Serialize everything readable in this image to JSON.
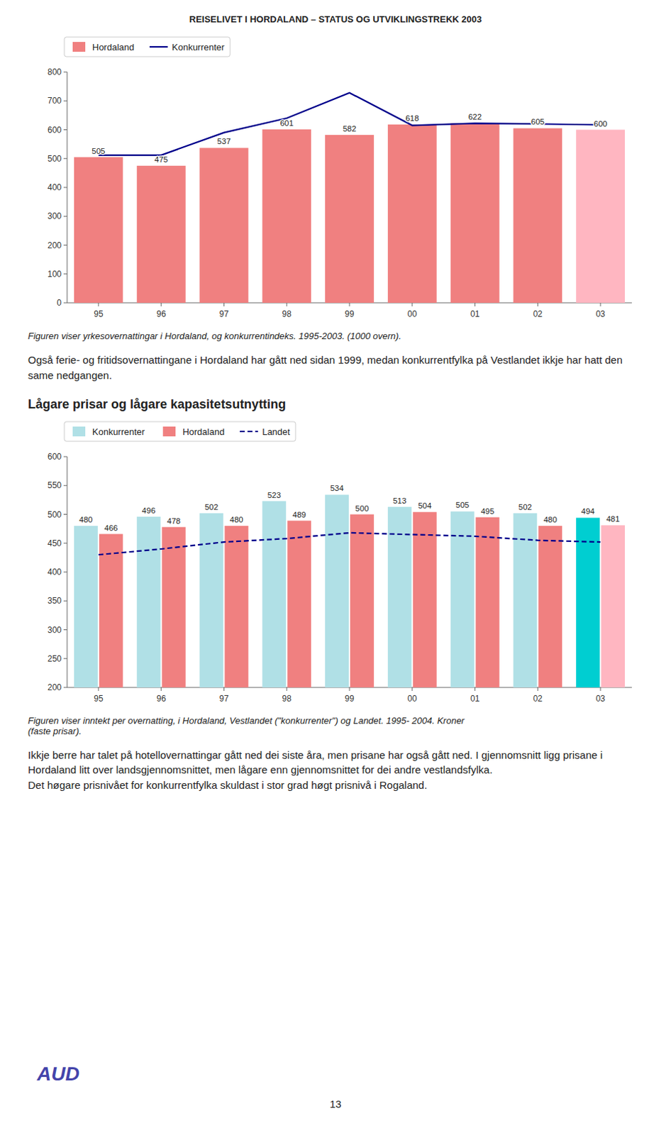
{
  "page_title": "REISELIVET I HORDALAND – STATUS OG UTVIKLINGSTREKK 2003",
  "chart_data": [
    {
      "type": "bar",
      "categories": [
        "95",
        "96",
        "97",
        "98",
        "99",
        "00",
        "01",
        "02",
        "03"
      ],
      "series": [
        {
          "name": "Hordaland",
          "type": "bar",
          "color": "#F08080",
          "colors": [
            "#F08080",
            "#F08080",
            "#F08080",
            "#F08080",
            "#F08080",
            "#F08080",
            "#F08080",
            "#F08080",
            "#FFB6C1"
          ],
          "values": [
            505,
            475,
            537,
            601,
            582,
            618,
            622,
            605,
            600
          ],
          "data_labels": true
        },
        {
          "name": "Konkurrenter",
          "type": "line",
          "color": "#00008B",
          "line_style": "solid",
          "values": [
            512,
            512,
            590,
            640,
            728,
            615,
            622,
            620,
            617
          ]
        }
      ],
      "ylim": [
        0,
        800
      ],
      "yticks": [
        0,
        100,
        200,
        300,
        400,
        500,
        600,
        700,
        800
      ],
      "grid": false,
      "legend": "upper left",
      "caption": "Figuren viser yrkesovernattingar i Hordaland, og konkurrentindeks. 1995-2003. (1000 overn)."
    },
    {
      "type": "bar",
      "categories": [
        "95",
        "96",
        "97",
        "98",
        "99",
        "00",
        "01",
        "02",
        "03"
      ],
      "series": [
        {
          "name": "Konkurrenter",
          "type": "bar",
          "color": "#B0E0E6",
          "colors": [
            "#B0E0E6",
            "#B0E0E6",
            "#B0E0E6",
            "#B0E0E6",
            "#B0E0E6",
            "#B0E0E6",
            "#B0E0E6",
            "#B0E0E6",
            "#00CED1"
          ],
          "values": [
            480,
            496,
            502,
            523,
            534,
            513,
            505,
            502,
            494
          ],
          "data_labels": true
        },
        {
          "name": "Hordaland",
          "type": "bar",
          "color": "#F08080",
          "colors": [
            "#F08080",
            "#F08080",
            "#F08080",
            "#F08080",
            "#F08080",
            "#F08080",
            "#F08080",
            "#F08080",
            "#FFB6C1"
          ],
          "values": [
            466,
            478,
            480,
            489,
            500,
            504,
            495,
            480,
            481
          ],
          "data_labels": true
        },
        {
          "name": "Landet",
          "type": "line",
          "color": "#00008B",
          "line_style": "dashed",
          "values": [
            430,
            440,
            452,
            458,
            468,
            465,
            462,
            455,
            452
          ]
        }
      ],
      "ylim": [
        200,
        600
      ],
      "yticks": [
        200,
        250,
        300,
        350,
        400,
        450,
        500,
        550,
        600
      ],
      "grid": false,
      "legend": "upper left",
      "caption": "Figuren viser inntekt per overnatting, i Hordaland, Vestlandet (\"konkurrenter\") og Landet. 1995- 2004. Kroner\n(faste prisar)."
    }
  ],
  "text_between": "Også ferie- og fritidsovernattingane i Hordaland har gått ned sidan 1999, medan konkurrentfylka på Vestlandet ikkje har hatt den same nedgangen.",
  "section_title": "Lågare prisar og lågare kapasitetsutnytting",
  "text_bottom": "Ikkje berre har talet på hotellovernattingar gått ned dei siste åra, men prisane har også gått ned. I gjennomsnitt ligg prisane i Hordaland litt over landsgjennomsnittet, men lågare enn gjennomsnittet for dei andre vestlandsfylka.\nDet høgare prisnivået for konkurrentfylka skuldast i stor grad høgt prisnivå i Rogaland.",
  "logo": "AUD",
  "page_number": "13"
}
